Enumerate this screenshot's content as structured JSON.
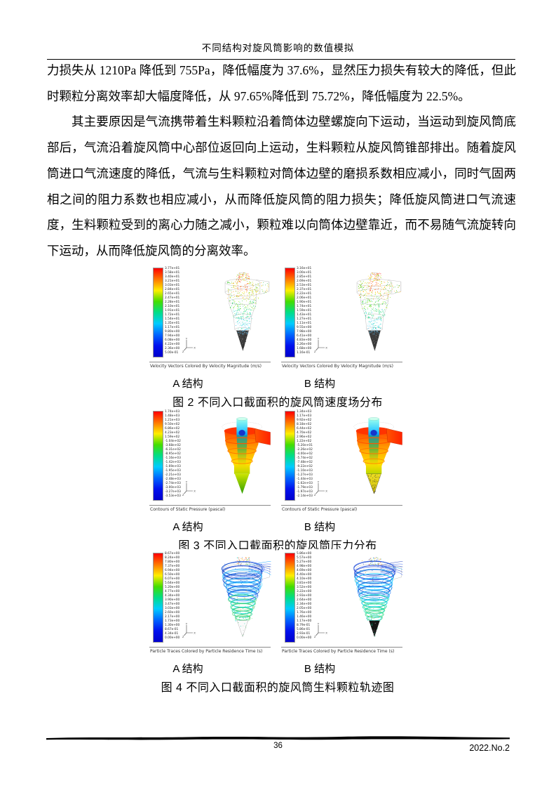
{
  "page": {
    "header_title": "不同结构对旋风筒影响的数值模拟",
    "footer": {
      "page_number": "36",
      "issue": "2022.No.2"
    }
  },
  "body": {
    "paragraph1": "力损失从 1210Pa 降低到 755Pa，降低幅度为 37.6%，显然压力损失有较大的降低，但此时颗粒分离效率却大幅度降低，从 97.65%降低到 75.72%，降低幅度为 22.5%。",
    "paragraph2": "其主要原因是气流携带着生料颗粒沿着筒体边壁螺旋向下运动，当运动到旋风筒底部后，气流沿着旋风筒中心部位返回向上运动，生料颗粒从旋风筒锥部排出。随着旋风筒进口气流速度的降低，气流与生料颗粒对筒体边壁的磨损系数相应减小，同时气固两相之间的阻力系数也相应减小，从而降低旋风筒的阻力损失；降低旋风筒进口气流速度，生料颗粒受到的离心力随之减小，颗粒难以向筒体边壁靠近，而不易随气流旋转向下运动，从而降低旋风筒的分离效率。"
  },
  "colors": {
    "legend_gradient": [
      "#ff0000",
      "#ff7700",
      "#ffee00",
      "#44dd00",
      "#00dd88",
      "#00ccff",
      "#0066ff",
      "#0011ee",
      "#0000cc"
    ],
    "cone_dark": "#3c3c3c",
    "inlet_red": "#ff3300"
  },
  "figures": [
    {
      "caption": "图 2 不同入口截面积的旋风筒速度场分布",
      "subcaption": "Velocity Vectors Colored By Velocity Magnitude (m/s)",
      "style": "vectors",
      "panels": [
        {
          "label": "A 结构",
          "legend_values": [
            "3.77e+01",
            "3.58e+01",
            "3.40e+01",
            "3.21e+01",
            "3.03e+01",
            "2.84e+01",
            "2.65e+01",
            "2.47e+01",
            "2.28e+01",
            "2.10e+01",
            "1.91e+01",
            "1.72e+01",
            "1.54e+01",
            "1.35e+01",
            "1.17e+01",
            "9.80e+00",
            "7.94e+00",
            "6.08e+00",
            "4.22e+00",
            "2.36e+00",
            "5.00e-01"
          ]
        },
        {
          "label": "B 结构",
          "legend_values": [
            "3.16e+01",
            "3.00e+01",
            "2.85e+01",
            "2.69e+01",
            "2.53e+01",
            "2.37e+01",
            "2.22e+01",
            "2.06e+01",
            "1.90e+01",
            "1.74e+01",
            "1.59e+01",
            "1.43e+01",
            "1.27e+01",
            "1.11e+01",
            "9.55e+00",
            "7.98e+00",
            "6.41e+00",
            "4.83e+00",
            "3.26e+00",
            "1.68e+00",
            "1.16e-01"
          ]
        }
      ]
    },
    {
      "caption": "图 3 不同入口截面积的旋风筒压力分布",
      "subcaption": "Contours of Static Pressure (pascal)",
      "style": "contours",
      "panels": [
        {
          "label": "A 结构",
          "legend_values": [
            "1.74e+03",
            "1.48e+03",
            "1.21e+03",
            "9.50e+02",
            "6.86e+02",
            "4.23e+02",
            "1.59e+02",
            "-1.04e+02",
            "-3.68e+02",
            "-6.31e+02",
            "-8.95e+02",
            "-1.16e+03",
            "-1.42e+03",
            "-1.69e+03",
            "-1.95e+03",
            "-2.21e+03",
            "-2.48e+03",
            "-2.74e+03",
            "-3.00e+03",
            "-3.27e+03",
            "-3.53e+03"
          ]
        },
        {
          "label": "B 结构",
          "legend_values": [
            "1.34e+03",
            "1.17e+03",
            "9.92e+02",
            "8.18e+02",
            "6.44e+02",
            "4.70e+02",
            "2.96e+02",
            "1.22e+02",
            "-5.20e+01",
            "-2.26e+02",
            "-4.00e+02",
            "-5.74e+02",
            "-7.48e+02",
            "-9.22e+02",
            "-1.10e+03",
            "-1.27e+03",
            "-1.44e+03",
            "-1.62e+03",
            "-1.79e+03",
            "-1.97e+03",
            "-2.14e+03"
          ]
        }
      ]
    },
    {
      "caption": "图 4 不同入口截面积的旋风筒生料颗粒轨迹图",
      "subcaption": "Particle Traces Colored by Particle Residence Time (s)",
      "style": "traces",
      "panels": [
        {
          "label": "A 结构",
          "legend_values": [
            "8.67e+00",
            "8.24e+00",
            "7.80e+00",
            "7.37e+00",
            "6.94e+00",
            "6.50e+00",
            "6.07e+00",
            "5.64e+00",
            "5.20e+00",
            "4.77e+00",
            "4.34e+00",
            "3.90e+00",
            "3.47e+00",
            "3.03e+00",
            "2.60e+00",
            "2.17e+00",
            "1.73e+00",
            "1.30e+00",
            "8.67e-01",
            "4.34e-01",
            "0.00e+00"
          ]
        },
        {
          "label": "B 结构",
          "legend_values": [
            "5.86e+00",
            "5.57e+00",
            "5.27e+00",
            "4.98e+00",
            "4.69e+00",
            "4.40e+00",
            "4.10e+00",
            "3.81e+00",
            "3.52e+00",
            "3.22e+00",
            "2.93e+00",
            "2.64e+00",
            "2.34e+00",
            "2.05e+00",
            "1.76e+00",
            "1.46e+00",
            "1.17e+00",
            "8.79e-01",
            "5.86e-01",
            "2.93e-01",
            "0.00e+00"
          ]
        }
      ]
    }
  ]
}
